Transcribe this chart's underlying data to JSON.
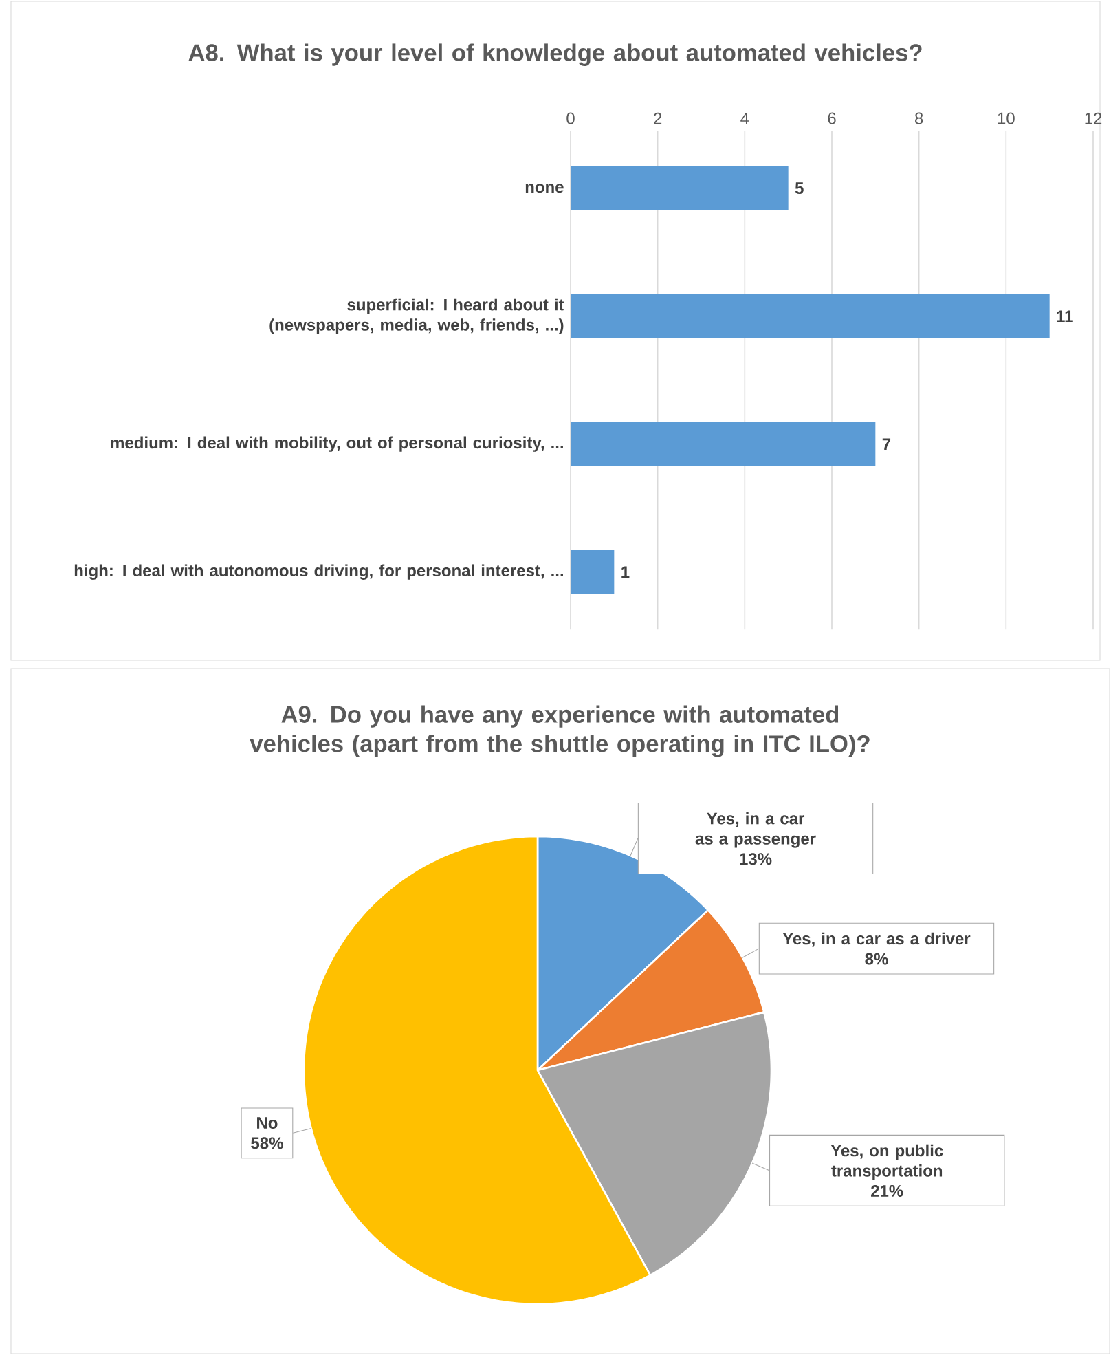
{
  "chart_data": [
    {
      "type": "bar",
      "title": "A8. What is your level of knowledge about automated vehicles?",
      "orientation": "horizontal",
      "categories": [
        "none",
        "superficial: I heard about it (newspapers, media, web, friends, ...)",
        "medium: I deal with mobility, out of personal curiosity, ...",
        "high: I deal with autonomous driving, for personal interest, ..."
      ],
      "values": [
        5,
        11,
        7,
        1
      ],
      "color": "#5b9bd5",
      "xlim": [
        0,
        12
      ],
      "xticks": [
        0,
        2,
        4,
        6,
        8,
        10,
        12
      ],
      "grid": "x",
      "data_labels": true
    },
    {
      "type": "pie",
      "title": "A9. Do you have any experience with automated vehicles (apart from the shuttle operating in ITC ILO)?",
      "categories": [
        "Yes, in a car as a passenger",
        "Yes, in a car as a driver",
        "Yes, on public transportation",
        "No"
      ],
      "values": [
        13,
        8,
        21,
        58
      ],
      "value_labels": [
        "13%",
        "8%",
        "21%",
        "58%"
      ],
      "colors": [
        "#5b9bd5",
        "#ed7d31",
        "#a5a5a5",
        "#ffc000"
      ]
    }
  ]
}
